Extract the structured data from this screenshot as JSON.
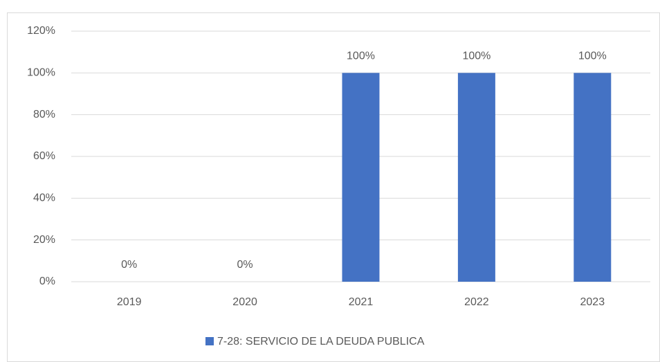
{
  "chart_data": {
    "type": "bar",
    "categories": [
      "2019",
      "2020",
      "2021",
      "2022",
      "2023"
    ],
    "series": [
      {
        "name": "7-28: SERVICIO DE LA DEUDA PUBLICA",
        "color": "#4472c4",
        "values": [
          0,
          0,
          100,
          100,
          100
        ],
        "value_labels": [
          "0%",
          "0%",
          "100%",
          "100%",
          "100%"
        ]
      }
    ],
    "ylim": [
      0,
      120
    ],
    "yticks": [
      {
        "value": 0,
        "label": "0%"
      },
      {
        "value": 20,
        "label": "20%"
      },
      {
        "value": 40,
        "label": "40%"
      },
      {
        "value": 60,
        "label": "60%"
      },
      {
        "value": 80,
        "label": "80%"
      },
      {
        "value": 100,
        "label": "100%"
      },
      {
        "value": 120,
        "label": "120%"
      }
    ],
    "grid": true,
    "legend": "bottom"
  }
}
